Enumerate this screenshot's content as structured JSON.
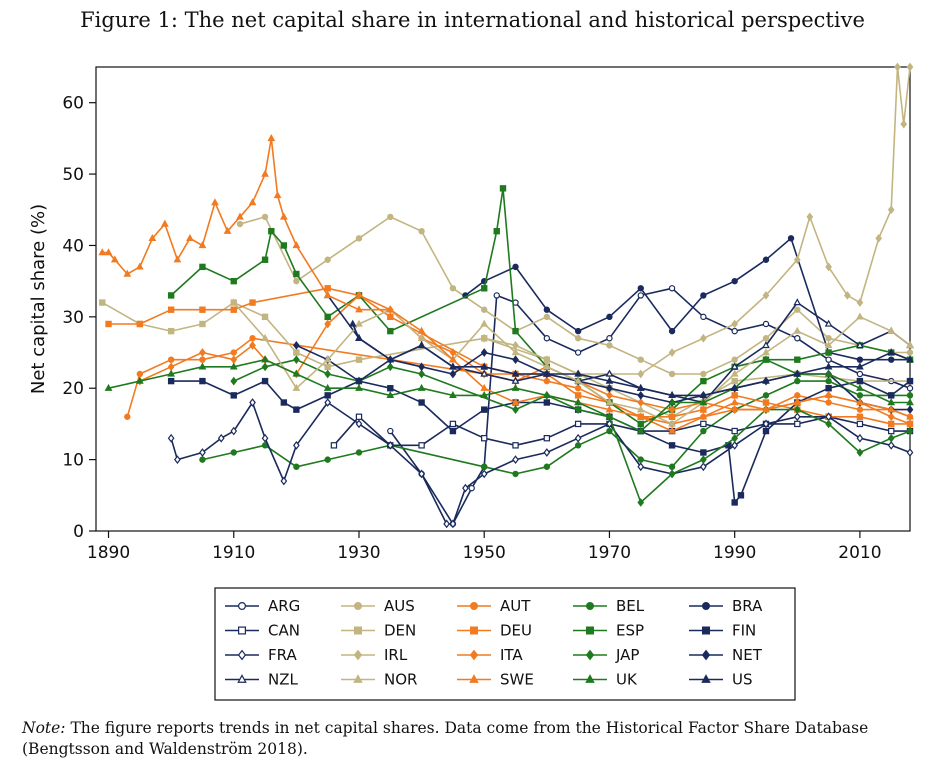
{
  "title": "Figure 1: The net capital share in international and historical perspective",
  "note": {
    "lead": "Note:",
    "text": " The figure reports trends in net capital shares. Data come from the Historical Factor Share Database (Bengtsson and Waldenström 2018)."
  },
  "chart_data": {
    "type": "line",
    "title": "Figure 1: The net capital share in international and historical perspective",
    "xlabel": "",
    "ylabel": "Net capital share (%)",
    "xlim": [
      1888,
      2018
    ],
    "ylim": [
      0,
      65
    ],
    "xticks": [
      1890,
      1910,
      1930,
      1950,
      1970,
      1990,
      2010
    ],
    "yticks": [
      0,
      10,
      20,
      30,
      40,
      50,
      60
    ],
    "grid": false,
    "legend_position": "bottom",
    "colors": {
      "navy": "#1a2a5c",
      "tan": "#c2b581",
      "orange": "#f27a20",
      "green": "#1f7a1f"
    },
    "series": [
      {
        "name": "ARG",
        "color": "#1a2a5c",
        "marker": "circle-open",
        "x": [
          1935,
          1940,
          1945,
          1948,
          1950,
          1952,
          1955,
          1960,
          1965,
          1970,
          1975,
          1980,
          1985,
          1990,
          1995,
          2000,
          2005,
          2010,
          2015,
          2018
        ],
        "y": [
          14,
          8,
          1,
          6,
          9,
          33,
          32,
          27,
          25,
          27,
          33,
          34,
          30,
          28,
          29,
          27,
          24,
          22,
          21,
          20
        ]
      },
      {
        "name": "AUS",
        "color": "#c2b581",
        "marker": "circle-filled",
        "x": [
          1911,
          1915,
          1920,
          1925,
          1930,
          1935,
          1940,
          1945,
          1950,
          1955,
          1960,
          1965,
          1970,
          1975,
          1980,
          1985,
          1990,
          1995,
          2000,
          2005,
          2010,
          2015,
          2018
        ],
        "y": [
          43,
          44,
          35,
          38,
          41,
          44,
          42,
          34,
          31,
          28,
          30,
          27,
          26,
          24,
          22,
          22,
          24,
          27,
          31,
          27,
          26,
          25,
          25
        ]
      },
      {
        "name": "AUT",
        "color": "#f27a20",
        "marker": "circle-filled",
        "x": [
          1893,
          1895,
          1900,
          1905,
          1910,
          1913,
          1950,
          1955,
          1960,
          1965,
          1970,
          1975,
          1980,
          1985,
          1990,
          1995,
          2000,
          2005,
          2010,
          2015,
          2018
        ],
        "y": [
          16,
          22,
          24,
          24,
          25,
          27,
          22,
          22,
          21,
          20,
          18,
          16,
          15,
          16,
          17,
          17,
          19,
          18,
          17,
          17,
          16
        ]
      },
      {
        "name": "BEL",
        "color": "#1f7a1f",
        "marker": "circle-filled",
        "x": [
          1905,
          1910,
          1915,
          1920,
          1925,
          1930,
          1935,
          1950,
          1955,
          1960,
          1965,
          1970,
          1975,
          1980,
          1985,
          1990,
          1995,
          2000,
          2005,
          2010,
          2015,
          2018
        ],
        "y": [
          10,
          11,
          12,
          9,
          10,
          11,
          12,
          9,
          8,
          9,
          12,
          14,
          10,
          9,
          14,
          17,
          19,
          21,
          21,
          19,
          19,
          19
        ]
      },
      {
        "name": "BRA",
        "color": "#1a2a5c",
        "marker": "circle-filled",
        "x": [
          1947,
          1950,
          1955,
          1960,
          1965,
          1970,
          1975,
          1980,
          1985,
          1990,
          1995,
          1999,
          2005,
          2010,
          2015,
          2018
        ],
        "y": [
          33,
          35,
          37,
          31,
          28,
          30,
          34,
          28,
          33,
          35,
          38,
          41,
          25,
          24,
          24,
          24
        ]
      },
      {
        "name": "CAN",
        "color": "#1a2a5c",
        "marker": "square-open",
        "x": [
          1926,
          1930,
          1935,
          1940,
          1945,
          1950,
          1955,
          1960,
          1965,
          1970,
          1975,
          1980,
          1985,
          1990,
          1995,
          2000,
          2005,
          2010,
          2015,
          2018
        ],
        "y": [
          12,
          16,
          12,
          12,
          15,
          13,
          12,
          13,
          15,
          15,
          14,
          14,
          15,
          14,
          15,
          15,
          16,
          15,
          14,
          14
        ]
      },
      {
        "name": "DEN",
        "color": "#c2b581",
        "marker": "square-filled",
        "x": [
          1889,
          1895,
          1900,
          1905,
          1910,
          1915,
          1920,
          1925,
          1930,
          1950,
          1960,
          1970,
          1980,
          1990,
          2000,
          2010,
          2018
        ],
        "y": [
          32,
          29,
          28,
          29,
          32,
          30,
          25,
          23,
          24,
          27,
          24,
          20,
          16,
          21,
          22,
          21,
          21
        ]
      },
      {
        "name": "DEU",
        "color": "#f27a20",
        "marker": "square-filled",
        "x": [
          1890,
          1895,
          1900,
          1905,
          1910,
          1913,
          1925,
          1930,
          1935,
          1950,
          1955,
          1960,
          1965,
          1970,
          1975,
          1980,
          1985,
          1990,
          1995,
          2000,
          2005,
          2010,
          2015,
          2018
        ],
        "y": [
          29,
          29,
          31,
          31,
          31,
          32,
          34,
          33,
          30,
          23,
          22,
          22,
          19,
          18,
          16,
          16,
          17,
          19,
          18,
          17,
          16,
          16,
          15,
          15
        ]
      },
      {
        "name": "ESP",
        "color": "#1f7a1f",
        "marker": "square-filled",
        "x": [
          1900,
          1905,
          1910,
          1915,
          1916,
          1918,
          1920,
          1925,
          1930,
          1935,
          1950,
          1952,
          1953,
          1955,
          1960,
          1965,
          1970,
          1975,
          1980,
          1985,
          1990,
          1995,
          2000,
          2005,
          2010,
          2015,
          2018
        ],
        "y": [
          33,
          37,
          35,
          38,
          42,
          40,
          36,
          30,
          33,
          28,
          34,
          42,
          48,
          28,
          23,
          21,
          18,
          15,
          17,
          21,
          23,
          24,
          24,
          25,
          26,
          25,
          24
        ]
      },
      {
        "name": "FIN",
        "color": "#1a2a5c",
        "marker": "square-filled",
        "x": [
          1900,
          1905,
          1910,
          1915,
          1918,
          1920,
          1925,
          1930,
          1935,
          1940,
          1945,
          1950,
          1955,
          1960,
          1965,
          1970,
          1975,
          1980,
          1985,
          1989,
          1990,
          1991,
          1995,
          2000,
          2005,
          2010,
          2015,
          2018
        ],
        "y": [
          21,
          21,
          19,
          21,
          18,
          17,
          19,
          21,
          20,
          18,
          14,
          17,
          18,
          18,
          17,
          16,
          14,
          12,
          11,
          12,
          4,
          5,
          14,
          18,
          20,
          21,
          19,
          21
        ]
      },
      {
        "name": "FRA",
        "color": "#1a2a5c",
        "marker": "diamond-open",
        "x": [
          1900,
          1901,
          1905,
          1908,
          1910,
          1913,
          1915,
          1918,
          1920,
          1925,
          1930,
          1935,
          1940,
          1944,
          1945,
          1947,
          1950,
          1955,
          1960,
          1965,
          1970,
          1975,
          1980,
          1985,
          1990,
          1995,
          2000,
          2005,
          2010,
          2015,
          2018
        ],
        "y": [
          13,
          10,
          11,
          13,
          14,
          18,
          13,
          7,
          12,
          18,
          15,
          12,
          8,
          1,
          1,
          6,
          8,
          10,
          11,
          13,
          15,
          9,
          8,
          9,
          12,
          15,
          16,
          16,
          13,
          12,
          11
        ]
      },
      {
        "name": "IRL",
        "color": "#c2b581",
        "marker": "diamond-filled",
        "x": [
          1950,
          1955,
          1960,
          1965,
          1970,
          1975,
          1980,
          1985,
          1990,
          1995,
          2000,
          2002,
          2005,
          2008,
          2010,
          2013,
          2015,
          2016,
          2017,
          2018
        ],
        "y": [
          27,
          26,
          24,
          22,
          22,
          22,
          25,
          27,
          29,
          33,
          38,
          44,
          37,
          33,
          32,
          41,
          45,
          65,
          57,
          65
        ]
      },
      {
        "name": "ITA",
        "color": "#f27a20",
        "marker": "diamond-filled",
        "x": [
          1895,
          1900,
          1905,
          1910,
          1913,
          1915,
          1920,
          1925,
          1930,
          1935,
          1940,
          1945,
          1950,
          1955,
          1960,
          1965,
          1970,
          1975,
          1980,
          1985,
          1990,
          1995,
          2000,
          2005,
          2010,
          2015,
          2018
        ],
        "y": [
          21,
          23,
          25,
          24,
          26,
          24,
          22,
          29,
          33,
          31,
          27,
          25,
          22,
          21,
          23,
          21,
          19,
          18,
          17,
          18,
          17,
          17,
          18,
          19,
          18,
          16,
          15
        ]
      },
      {
        "name": "JAP",
        "color": "#1f7a1f",
        "marker": "diamond-filled",
        "x": [
          1910,
          1915,
          1920,
          1925,
          1930,
          1935,
          1940,
          1955,
          1960,
          1965,
          1970,
          1975,
          1980,
          1985,
          1990,
          1995,
          2000,
          2005,
          2010,
          2015,
          2018
        ],
        "y": [
          21,
          23,
          24,
          22,
          21,
          23,
          22,
          17,
          19,
          17,
          16,
          4,
          8,
          10,
          13,
          17,
          17,
          15,
          11,
          13,
          14
        ]
      },
      {
        "name": "NET",
        "color": "#1a2a5c",
        "marker": "diamond-filled",
        "x": [
          1920,
          1925,
          1930,
          1935,
          1940,
          1945,
          1950,
          1955,
          1960,
          1965,
          1970,
          1975,
          1980,
          1985,
          1990,
          1995,
          2000,
          2005,
          2010,
          2015,
          2018
        ],
        "y": [
          26,
          24,
          21,
          24,
          23,
          22,
          25,
          24,
          22,
          21,
          20,
          19,
          18,
          19,
          20,
          21,
          22,
          22,
          18,
          17,
          17
        ]
      },
      {
        "name": "NZL",
        "color": "#1a2a5c",
        "marker": "triangle-open",
        "x": [
          1925,
          1930,
          1935,
          1940,
          1945,
          1950,
          1955,
          1960,
          1965,
          1970,
          1975,
          1980,
          1985,
          1990,
          1995,
          2000,
          2005,
          2010,
          2015,
          2018
        ],
        "y": [
          33,
          27,
          24,
          26,
          23,
          22,
          21,
          22,
          21,
          22,
          20,
          19,
          18,
          23,
          26,
          32,
          29,
          26,
          28,
          26
        ]
      },
      {
        "name": "NOR",
        "color": "#c2b581",
        "marker": "triangle-filled",
        "x": [
          1910,
          1915,
          1920,
          1925,
          1930,
          1935,
          1940,
          1945,
          1950,
          1955,
          1960,
          1965,
          1970,
          1975,
          1980,
          1985,
          1990,
          1995,
          2000,
          2005,
          2010,
          2015,
          2018
        ],
        "y": [
          32,
          27,
          20,
          24,
          29,
          31,
          27,
          24,
          29,
          25,
          23,
          21,
          18,
          17,
          15,
          18,
          22,
          25,
          28,
          26,
          30,
          28,
          26
        ]
      },
      {
        "name": "SWE",
        "color": "#f27a20",
        "marker": "triangle-filled",
        "x": [
          1889,
          1890,
          1891,
          1893,
          1895,
          1897,
          1899,
          1901,
          1903,
          1905,
          1907,
          1909,
          1911,
          1913,
          1915,
          1916,
          1917,
          1918,
          1920,
          1925,
          1930,
          1935,
          1940,
          1945,
          1950,
          1955,
          1960,
          1965,
          1970,
          1975,
          1980,
          1985,
          1990,
          1995,
          2000,
          2005,
          2010,
          2015,
          2018
        ],
        "y": [
          39,
          39,
          38,
          36,
          37,
          41,
          43,
          38,
          41,
          40,
          46,
          42,
          44,
          46,
          50,
          55,
          47,
          44,
          40,
          33,
          31,
          31,
          28,
          24,
          20,
          18,
          19,
          18,
          17,
          16,
          14,
          16,
          18,
          17,
          18,
          19,
          18,
          17,
          16
        ]
      },
      {
        "name": "UK",
        "color": "#1f7a1f",
        "marker": "triangle-filled",
        "x": [
          1890,
          1895,
          1900,
          1905,
          1910,
          1915,
          1920,
          1925,
          1930,
          1935,
          1940,
          1945,
          1950,
          1955,
          1960,
          1965,
          1970,
          1975,
          1980,
          1985,
          1990,
          1995,
          2000,
          2005,
          2010,
          2015,
          2018
        ],
        "y": [
          20,
          21,
          22,
          23,
          23,
          24,
          22,
          20,
          20,
          19,
          20,
          19,
          19,
          20,
          19,
          18,
          16,
          14,
          18,
          18,
          20,
          24,
          22,
          22,
          20,
          18,
          18
        ]
      },
      {
        "name": "US",
        "color": "#1a2a5c",
        "marker": "triangle-filled",
        "x": [
          1929,
          1930,
          1935,
          1940,
          1945,
          1950,
          1955,
          1960,
          1965,
          1970,
          1975,
          1980,
          1985,
          1990,
          1995,
          2000,
          2005,
          2010,
          2015,
          2018
        ],
        "y": [
          29,
          27,
          24,
          26,
          23,
          23,
          22,
          22,
          22,
          21,
          20,
          19,
          19,
          20,
          21,
          22,
          23,
          23,
          25,
          24
        ]
      }
    ]
  }
}
